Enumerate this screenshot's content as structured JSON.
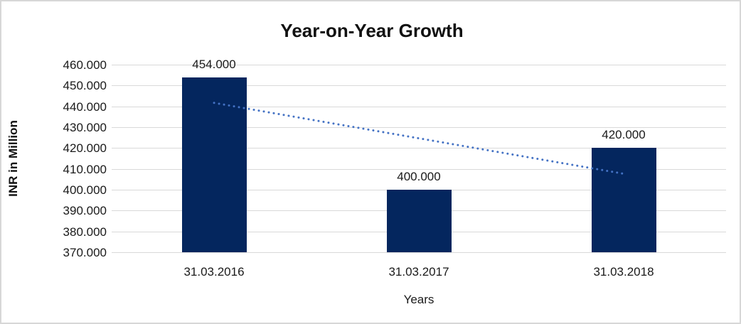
{
  "chart_data": {
    "type": "bar",
    "title": "Year-on-Year Growth",
    "xlabel": "Years",
    "ylabel": "INR in Million",
    "categories": [
      "31.03.2016",
      "31.03.2017",
      "31.03.2018"
    ],
    "values": [
      454,
      400,
      420
    ],
    "value_labels": [
      "454.000",
      "400.000",
      "420.000"
    ],
    "ylim": [
      370,
      460
    ],
    "ytick_values": [
      460,
      450,
      440,
      430,
      420,
      410,
      400,
      390,
      380,
      370
    ],
    "ytick_labels": [
      "460.000",
      "450.000",
      "440.000",
      "430.000",
      "420.000",
      "410.000",
      "400.000",
      "390.000",
      "380.000",
      "370.000"
    ],
    "grid": true,
    "legend": "none",
    "colors": {
      "bar": "#04265e",
      "trendline": "#4472c4",
      "gridline": "#d9d9d9",
      "frame_border": "#d7d7d7",
      "text": "#1a1a1a"
    },
    "trendline": {
      "style": "dotted",
      "start_value": 441.67,
      "end_value": 407.67,
      "description": "linear trendline from first to last category center"
    }
  }
}
